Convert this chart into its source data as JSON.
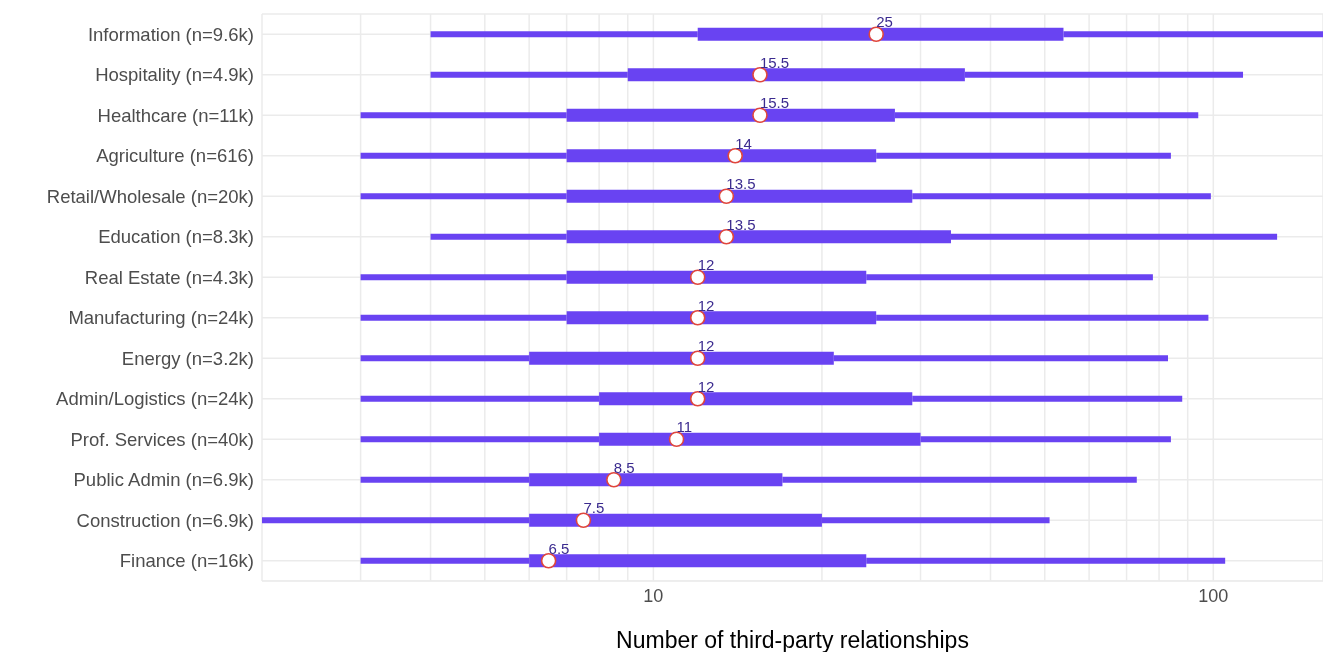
{
  "chart_data": {
    "type": "box",
    "orientation": "horizontal",
    "log": "x",
    "color": "#6943f2",
    "categories": [
      "Information (n=9.6k)",
      "Hospitality (n=4.9k)",
      "Healthcare (n=11k)",
      "Agriculture (n=616)",
      "Retail/Wholesale (n=20k)",
      "Education (n=8.3k)",
      "Real Estate (n=4.3k)",
      "Manufacturing (n=24k)",
      "Energy (n=3.2k)",
      "Admin/Logistics (n=24k)",
      "Prof. Services (n=40k)",
      "Public Admin (n=6.9k)",
      "Construction (n=6.9k)",
      "Finance (n=16k)"
    ],
    "boxes": [
      {
        "low": 4,
        "q1": 12,
        "median": 25,
        "q3": 54,
        "high": 157
      },
      {
        "low": 4,
        "q1": 9,
        "median": 15.5,
        "q3": 36,
        "high": 113
      },
      {
        "low": 3,
        "q1": 7,
        "median": 15.5,
        "q3": 27,
        "high": 94
      },
      {
        "low": 3,
        "q1": 7,
        "median": 14,
        "q3": 25,
        "high": 84
      },
      {
        "low": 3,
        "q1": 7,
        "median": 13.5,
        "q3": 29,
        "high": 99
      },
      {
        "low": 4,
        "q1": 7,
        "median": 13.5,
        "q3": 34,
        "high": 130
      },
      {
        "low": 3,
        "q1": 7,
        "median": 12,
        "q3": 24,
        "high": 78
      },
      {
        "low": 3,
        "q1": 7,
        "median": 12,
        "q3": 25,
        "high": 98
      },
      {
        "low": 3,
        "q1": 6,
        "median": 12,
        "q3": 21,
        "high": 83
      },
      {
        "low": 3,
        "q1": 8,
        "median": 12,
        "q3": 29,
        "high": 88
      },
      {
        "low": 3,
        "q1": 8,
        "median": 11,
        "q3": 30,
        "high": 84
      },
      {
        "low": 3,
        "q1": 6,
        "median": 8.5,
        "q3": 17,
        "high": 73
      },
      {
        "low": 2,
        "q1": 6,
        "median": 7.5,
        "q3": 20,
        "high": 51
      },
      {
        "low": 3,
        "q1": 6,
        "median": 6.5,
        "q3": 24,
        "high": 105
      }
    ],
    "xlim": [
      2,
      157
    ],
    "xticks": [
      {
        "value": 2,
        "label": null
      },
      {
        "value": 3,
        "label": null
      },
      {
        "value": 4,
        "label": null
      },
      {
        "value": 5,
        "label": null
      },
      {
        "value": 6,
        "label": null
      },
      {
        "value": 7,
        "label": null
      },
      {
        "value": 8,
        "label": null
      },
      {
        "value": 9,
        "label": null
      },
      10,
      {
        "value": 20,
        "label": null
      },
      {
        "value": 30,
        "label": null
      },
      {
        "value": 40,
        "label": null
      },
      {
        "value": 50,
        "label": null
      },
      {
        "value": 60,
        "label": null
      },
      {
        "value": 70,
        "label": null
      },
      {
        "value": 80,
        "label": null
      },
      {
        "value": 90,
        "label": null
      },
      100
    ],
    "xlabel": "Number of third-party relationships",
    "grid": true,
    "marker": "circle",
    "annotations": [
      {
        "text": "25",
        "x": 25,
        "y": "Information (n=9.6k)"
      },
      {
        "text": "15.5",
        "x": 15.5,
        "y": "Hospitality (n=4.9k)"
      },
      {
        "text": "15.5",
        "x": 15.5,
        "y": "Healthcare (n=11k)"
      },
      {
        "text": "14",
        "x": 14,
        "y": "Agriculture (n=616)"
      },
      {
        "text": "13.5",
        "x": 13.5,
        "y": "Retail/Wholesale (n=20k)"
      },
      {
        "text": "13.5",
        "x": 13.5,
        "y": "Education (n=8.3k)"
      },
      {
        "text": "12",
        "x": 12,
        "y": "Real Estate (n=4.3k)"
      },
      {
        "text": "12",
        "x": 12,
        "y": "Manufacturing (n=24k)"
      },
      {
        "text": "12",
        "x": 12,
        "y": "Energy (n=3.2k)"
      },
      {
        "text": "12",
        "x": 12,
        "y": "Admin/Logistics (n=24k)"
      },
      {
        "text": "11",
        "x": 11,
        "y": "Prof. Services (n=40k)"
      },
      {
        "text": "8.5",
        "x": 8.5,
        "y": "Public Admin (n=6.9k)"
      },
      {
        "text": "7.5",
        "x": 7.5,
        "y": "Construction (n=6.9k)"
      },
      {
        "text": "6.5",
        "x": 6.5,
        "y": "Finance (n=16k)"
      }
    ]
  }
}
